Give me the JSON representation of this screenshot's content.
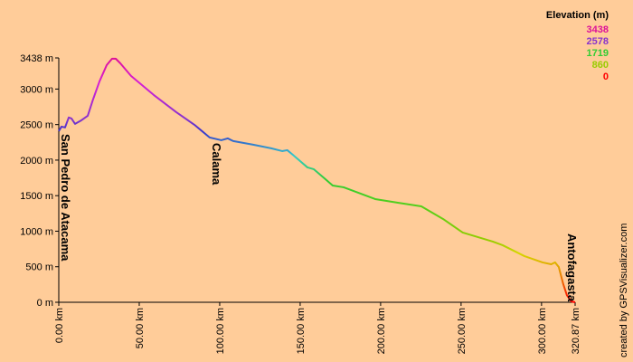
{
  "chart_data": {
    "type": "line",
    "x": [
      0,
      1.7,
      3.9,
      6.2,
      7.9,
      10.1,
      14,
      18,
      21.3,
      25.3,
      29.8,
      33.1,
      35.4,
      38.2,
      44.9,
      59,
      73,
      84.3,
      93.8,
      101,
      105,
      108.4,
      120.8,
      132,
      138.8,
      142,
      146,
      154.5,
      158.4,
      165.7,
      170.2,
      177,
      196.6,
      210.7,
      225.3,
      238.8,
      251,
      269.7,
      275.8,
      289.3,
      300.6,
      306,
      308.4,
      310.7,
      313.5,
      315.7,
      318.5,
      320.87
    ],
    "series": [
      {
        "name": "Elevation (m)",
        "values": [
          2408,
          2471,
          2460,
          2600,
          2586,
          2510,
          2560,
          2624,
          2854,
          3108,
          3338,
          3427,
          3427,
          3363,
          3185,
          2917,
          2675,
          2497,
          2318,
          2280,
          2306,
          2268,
          2217,
          2166,
          2127,
          2140,
          2064,
          1898,
          1873,
          1732,
          1643,
          1618,
          1452,
          1401,
          1350,
          1172,
          981,
          854,
          803,
          650,
          561,
          535,
          561,
          497,
          255,
          102,
          13,
          0
        ]
      }
    ],
    "xlim": [
      0,
      320.87
    ],
    "ylim": [
      0,
      3438
    ],
    "xticks": [
      {
        "value": 0,
        "label": "0.00 km"
      },
      {
        "value": 50,
        "label": "50.00 km"
      },
      {
        "value": 100,
        "label": "100.00 km"
      },
      {
        "value": 150,
        "label": "150.00 km"
      },
      {
        "value": 200,
        "label": "200.00 km"
      },
      {
        "value": 250,
        "label": "250.00 km"
      },
      {
        "value": 300,
        "label": "300.00 km"
      },
      {
        "value": 320.87,
        "label": "320.87 km"
      }
    ],
    "yticks": [
      {
        "value": 0,
        "label": "0 m"
      },
      {
        "value": 500,
        "label": "500 m"
      },
      {
        "value": 1000,
        "label": "1000 m"
      },
      {
        "value": 1500,
        "label": "1500 m"
      },
      {
        "value": 2000,
        "label": "2000 m"
      },
      {
        "value": 2500,
        "label": "2500 m"
      },
      {
        "value": 3000,
        "label": "3000 m"
      },
      {
        "value": 3438,
        "label": "3438 m"
      }
    ],
    "legend_title": "Elevation (m)",
    "color_scale": [
      {
        "value": 3438,
        "color": "#dd1199"
      },
      {
        "value": 2578,
        "color": "#8833cc"
      },
      {
        "value": 1719,
        "color": "#33cc33"
      },
      {
        "value": 860,
        "color": "#99cc00"
      },
      {
        "value": 0,
        "color": "#ff0000"
      }
    ],
    "annotations": [
      {
        "text": "San Pedro de Atacama",
        "x": 0
      },
      {
        "text": "Calama",
        "x": 93.8
      },
      {
        "text": "Antofagasta",
        "x": 320.87
      }
    ],
    "credit": "created by GPSVisualizer.com"
  }
}
